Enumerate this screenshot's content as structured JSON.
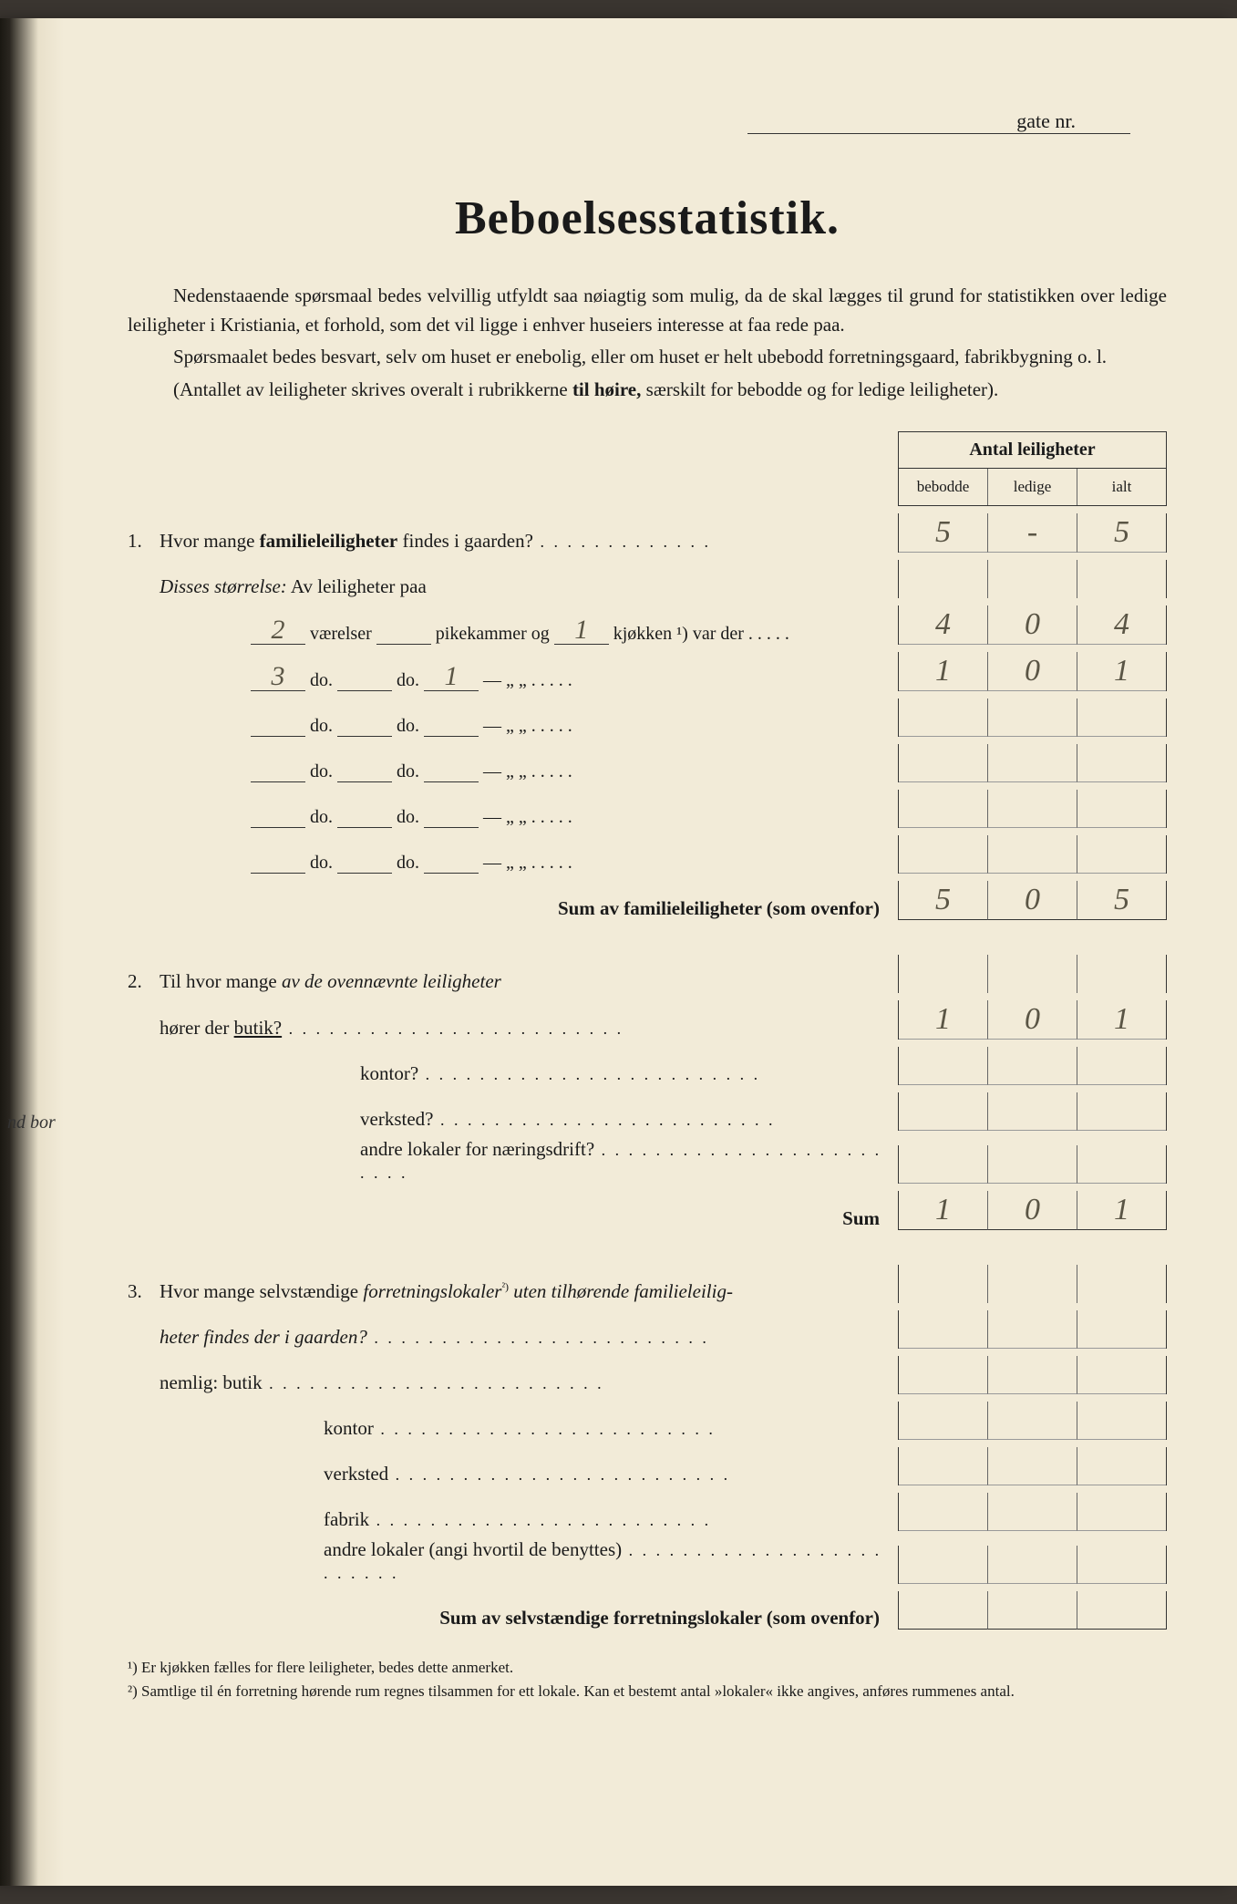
{
  "page": {
    "background": "#f2ebd8",
    "text_color": "#1a1a1a",
    "handwriting_color": "#5a5545"
  },
  "header": {
    "gate_label": "gate nr.",
    "title": "Beboelsesstatistik."
  },
  "intro": {
    "p1": "Nedenstaaende spørsmaal bedes velvillig utfyldt saa nøiagtig som mulig, da de skal lægges til grund for statistikken over ledige leiligheter i Kristiania, et forhold, som det vil ligge i enhver huseiers interesse at faa rede paa.",
    "p2": "Spørsmaalet bedes besvart, selv om huset er enebolig, eller om huset er helt ubebodd forretningsgaard, fabrikbygning o. l.",
    "p3_a": "(Antallet av leiligheter skrives overalt i rubrikkerne ",
    "p3_b": "til høire,",
    "p3_c": " særskilt for bebodde og for ledige leiligheter)."
  },
  "table_header": {
    "title": "Antal leiligheter",
    "col1": "bebodde",
    "col2": "ledige",
    "col3": "ialt"
  },
  "q1": {
    "num": "1.",
    "text_a": "Hvor mange ",
    "text_b": "familieleiligheter",
    "text_c": " findes i gaarden?",
    "bebodde": "5",
    "ledige": "-",
    "ialt": "5",
    "disses": "Disses størrelse:",
    "av_leil": " Av leiligheter paa",
    "rows": [
      {
        "vaer": "2",
        "pik_label": "værelser",
        "pik": "",
        "mid": "pikekammer og",
        "kjok": "1",
        "tail": "kjøkken ¹) var der",
        "b": "4",
        "l": "0",
        "i": "4"
      },
      {
        "vaer": "3",
        "pik_label": "do.",
        "pik": "",
        "mid": "do.",
        "kjok": "1",
        "tail": "—        „    „",
        "b": "1",
        "l": "0",
        "i": "1"
      },
      {
        "vaer": "",
        "pik_label": "do.",
        "pik": "",
        "mid": "do.",
        "kjok": "",
        "tail": "—        „    „",
        "b": "",
        "l": "",
        "i": ""
      },
      {
        "vaer": "",
        "pik_label": "do.",
        "pik": "",
        "mid": "do.",
        "kjok": "",
        "tail": "—        „    „",
        "b": "",
        "l": "",
        "i": ""
      },
      {
        "vaer": "",
        "pik_label": "do.",
        "pik": "",
        "mid": "do.",
        "kjok": "",
        "tail": "—        „    „",
        "b": "",
        "l": "",
        "i": ""
      },
      {
        "vaer": "",
        "pik_label": "do.",
        "pik": "",
        "mid": "do.",
        "kjok": "",
        "tail": "—        „    „",
        "b": "",
        "l": "",
        "i": ""
      }
    ],
    "sum_label": "Sum av familieleiligheter",
    "sum_tail": " (som ovenfor)",
    "sum_b": "5",
    "sum_l": "0",
    "sum_i": "5"
  },
  "q2": {
    "num": "2.",
    "text_a": "Til hvor mange ",
    "text_b": "av de ovennævnte leiligheter",
    "line2_a": "hører der ",
    "line2_b": "butik?",
    "b": "1",
    "l": "0",
    "i": "1",
    "rows": [
      {
        "label": "kontor?",
        "b": "",
        "l": "",
        "i": ""
      },
      {
        "label": "verksted?",
        "b": "",
        "l": "",
        "i": ""
      },
      {
        "label": "andre lokaler for næringsdrift?",
        "b": "",
        "l": "",
        "i": ""
      }
    ],
    "sum_label": "Sum",
    "sum_b": "1",
    "sum_l": "0",
    "sum_i": "1"
  },
  "q3": {
    "num": "3.",
    "text_a": "Hvor mange selvstændige ",
    "text_b": "forretningslokaler",
    "text_sup": "²)",
    "text_c": " uten tilhørende familieleilig-",
    "line2": "heter findes der i gaarden?",
    "nemlig": "nemlig:",
    "rows": [
      {
        "label": "butik"
      },
      {
        "label": "kontor"
      },
      {
        "label": "verksted"
      },
      {
        "label": "fabrik"
      },
      {
        "label": "andre lokaler (angi hvortil de benyttes)"
      }
    ],
    "sum_label": "Sum av selvstændige forretningslokaler",
    "sum_tail": " (som ovenfor)"
  },
  "footnotes": {
    "f1": "¹)  Er kjøkken fælles for flere leiligheter, bedes dette anmerket.",
    "f2": "²)  Samtlige til én forretning hørende rum regnes tilsammen for ett lokale. Kan et bestemt antal »lokaler« ikke angives, anføres rummenes antal."
  },
  "margin": {
    "nd_bor": "nd bor"
  }
}
